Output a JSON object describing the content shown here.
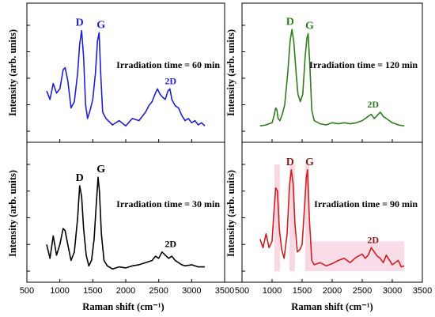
{
  "chart_data": [
    {
      "type": "line",
      "panel": "top-left",
      "color": "#1f1fd6",
      "annotation": "Irradiation time = 60 min",
      "peak_labels": [
        "D",
        "G",
        "2D"
      ],
      "x": [
        800,
        850,
        900,
        950,
        1000,
        1050,
        1080,
        1120,
        1170,
        1220,
        1270,
        1300,
        1330,
        1360,
        1390,
        1420,
        1460,
        1500,
        1540,
        1570,
        1595,
        1620,
        1650,
        1700,
        1800,
        1900,
        2000,
        2100,
        2200,
        2300,
        2350,
        2400,
        2450,
        2480,
        2520,
        2560,
        2600,
        2640,
        2670,
        2700,
        2750,
        2800,
        2850,
        2900,
        2950,
        3000,
        3050,
        3100,
        3150,
        3200
      ],
      "y": [
        0.38,
        0.3,
        0.45,
        0.36,
        0.4,
        0.58,
        0.6,
        0.48,
        0.22,
        0.28,
        0.55,
        0.82,
        0.95,
        0.7,
        0.25,
        0.12,
        0.2,
        0.3,
        0.55,
        0.85,
        0.93,
        0.55,
        0.18,
        0.12,
        0.06,
        0.1,
        0.05,
        0.12,
        0.1,
        0.18,
        0.24,
        0.28,
        0.36,
        0.4,
        0.35,
        0.32,
        0.3,
        0.38,
        0.4,
        0.3,
        0.24,
        0.22,
        0.15,
        0.1,
        0.12,
        0.08,
        0.1,
        0.06,
        0.08,
        0.05
      ]
    },
    {
      "type": "line",
      "panel": "top-right",
      "color": "#2f7d1d",
      "annotation": "Irradiation time = 120 min",
      "peak_labels": [
        "D",
        "G",
        "2D"
      ],
      "x": [
        800,
        900,
        1000,
        1030,
        1060,
        1080,
        1100,
        1130,
        1170,
        1210,
        1260,
        1300,
        1330,
        1360,
        1400,
        1430,
        1470,
        1510,
        1550,
        1580,
        1600,
        1630,
        1660,
        1700,
        1800,
        1900,
        2000,
        2100,
        2200,
        2300,
        2400,
        2500,
        2550,
        2600,
        2650,
        2700,
        2750,
        2800,
        2850,
        2900,
        2950,
        3000,
        3100,
        3200
      ],
      "y": [
        0.05,
        0.06,
        0.08,
        0.14,
        0.22,
        0.2,
        0.12,
        0.1,
        0.16,
        0.25,
        0.55,
        0.85,
        0.96,
        0.85,
        0.55,
        0.35,
        0.28,
        0.35,
        0.7,
        0.88,
        0.92,
        0.6,
        0.2,
        0.1,
        0.07,
        0.06,
        0.08,
        0.07,
        0.08,
        0.07,
        0.08,
        0.1,
        0.12,
        0.14,
        0.16,
        0.12,
        0.15,
        0.18,
        0.14,
        0.12,
        0.1,
        0.08,
        0.06,
        0.05
      ]
    },
    {
      "type": "line",
      "panel": "bottom-left",
      "color": "#000000",
      "annotation": "Irradiation time = 30 min",
      "peak_labels": [
        "D",
        "G",
        "2D"
      ],
      "x": [
        800,
        850,
        900,
        950,
        1000,
        1050,
        1080,
        1120,
        1170,
        1220,
        1270,
        1300,
        1330,
        1360,
        1400,
        1440,
        1480,
        1520,
        1550,
        1580,
        1600,
        1630,
        1670,
        1720,
        1800,
        1900,
        2000,
        2100,
        2200,
        2300,
        2400,
        2450,
        2500,
        2550,
        2600,
        2650,
        2700,
        2750,
        2800,
        2850,
        2900,
        3000,
        3100,
        3200
      ],
      "y": [
        0.25,
        0.12,
        0.33,
        0.15,
        0.25,
        0.4,
        0.38,
        0.25,
        0.1,
        0.18,
        0.5,
        0.8,
        0.7,
        0.4,
        0.15,
        0.05,
        0.1,
        0.3,
        0.6,
        0.88,
        0.75,
        0.35,
        0.1,
        0.05,
        0.02,
        0.04,
        0.03,
        0.05,
        0.06,
        0.08,
        0.1,
        0.14,
        0.12,
        0.18,
        0.15,
        0.12,
        0.14,
        0.1,
        0.08,
        0.06,
        0.05,
        0.06,
        0.04,
        0.04
      ]
    },
    {
      "type": "line",
      "panel": "bottom-right",
      "color": "#d41c1c",
      "annotation": "Irradiation time = 90 min",
      "peak_labels": [
        "D",
        "G",
        "2D"
      ],
      "x": [
        800,
        850,
        900,
        950,
        1000,
        1030,
        1060,
        1090,
        1120,
        1160,
        1200,
        1250,
        1290,
        1320,
        1350,
        1380,
        1420,
        1460,
        1500,
        1540,
        1570,
        1590,
        1620,
        1660,
        1700,
        1800,
        1900,
        2000,
        2100,
        2200,
        2300,
        2400,
        2500,
        2550,
        2600,
        2650,
        2700,
        2750,
        2800,
        2850,
        2900,
        3000,
        3100,
        3150,
        3200
      ],
      "y": [
        0.3,
        0.22,
        0.35,
        0.22,
        0.28,
        0.55,
        0.78,
        0.75,
        0.4,
        0.2,
        0.12,
        0.35,
        0.8,
        0.95,
        0.82,
        0.45,
        0.18,
        0.2,
        0.25,
        0.6,
        0.88,
        0.95,
        0.5,
        0.1,
        0.06,
        0.08,
        0.05,
        0.07,
        0.1,
        0.12,
        0.08,
        0.13,
        0.16,
        0.12,
        0.15,
        0.22,
        0.18,
        0.14,
        0.12,
        0.08,
        0.15,
        0.06,
        0.1,
        0.04,
        0.05
      ]
    }
  ],
  "x_axis": {
    "label": "Raman shift (cm⁻¹)",
    "range": [
      500,
      3500
    ],
    "ticks": [
      "500",
      "1000",
      "1500",
      "2000",
      "2500",
      "3000",
      "3500"
    ],
    "tick_values": [
      500,
      1000,
      1500,
      2000,
      2500,
      3000,
      3500
    ]
  },
  "y_axis": {
    "label": "Intensity (arb. units)",
    "range": [
      0,
      1
    ]
  },
  "peaks": {
    "D": 1340,
    "G": 1595,
    "2D": 2680
  },
  "colors": {
    "highlight_bottom_right": "#f7c6d9"
  }
}
